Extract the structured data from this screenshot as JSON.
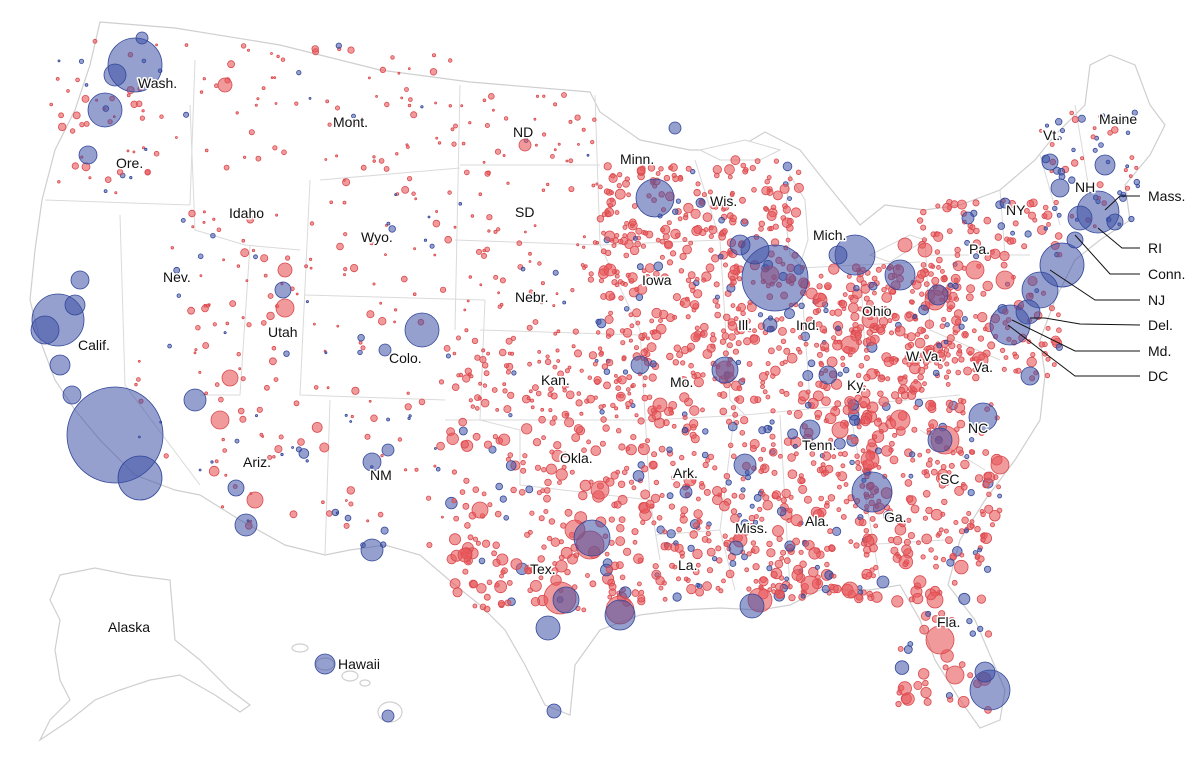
{
  "colors": {
    "republican": "#e8575a",
    "republican_stroke": "#d94a4e",
    "democrat": "#3e52a6",
    "democrat_stroke": "#33479a",
    "land": "#ffffff",
    "border": "#d4d4d4"
  },
  "state_labels": {
    "wash": "Wash.",
    "ore": "Ore.",
    "calif": "Calif.",
    "nev": "Nev.",
    "idaho": "Idaho",
    "mont": "Mont.",
    "wyo": "Wyo.",
    "utah": "Utah",
    "ariz": "Ariz.",
    "colo": "Colo.",
    "nm": "NM",
    "nd": "ND",
    "sd": "SD",
    "nebr": "Nebr.",
    "kan": "Kan.",
    "okla": "Okla.",
    "tex": "Tex.",
    "minn": "Minn.",
    "iowa": "Iowa",
    "mo": "Mo.",
    "ark": "Ark.",
    "la": "La.",
    "wis": "Wis.",
    "ill": "Ill.",
    "miss": "Miss.",
    "mich": "Mich.",
    "ind": "Ind.",
    "ohio": "Ohio",
    "ky": "Ky.",
    "tenn": "Tenn.",
    "ala": "Ala.",
    "ga": "Ga.",
    "fla": "Fla.",
    "sc": "SC",
    "nc": "NC",
    "va": "Va.",
    "wva": "W.Va.",
    "pa": "Pa.",
    "ny": "NY",
    "vt": "Vt.",
    "nh": "NH",
    "maine": "Maine",
    "mass": "Mass.",
    "ri": "RI",
    "conn": "Conn.",
    "nj": "NJ",
    "del": "Del.",
    "md": "Md.",
    "dc": "DC",
    "alaska": "Alaska",
    "hawaii": "Hawaii"
  }
}
